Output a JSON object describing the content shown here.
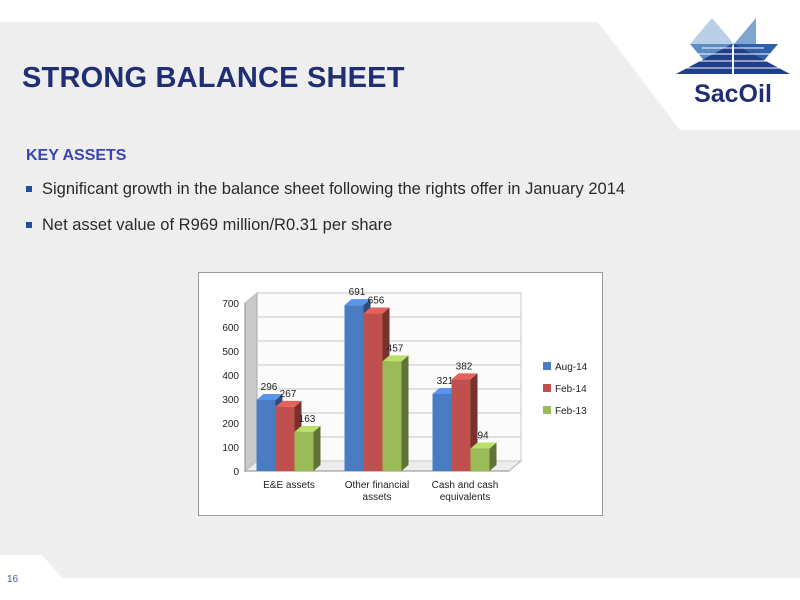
{
  "slide": {
    "title": "STRONG BALANCE SHEET",
    "brand": "SacOil",
    "section_heading": "KEY ASSETS",
    "bullets": [
      "Significant growth in the balance sheet following the rights offer in January 2014",
      "Net asset value of R969 million/R0.31 per share"
    ],
    "page_number": "16"
  },
  "colors": {
    "title": "#1f2f72",
    "heading": "#3a45b0",
    "background_band": "#eeeeee",
    "series": [
      "#4a7cc4",
      "#c0504d",
      "#9bbb59"
    ]
  },
  "chart_data": {
    "type": "bar",
    "variant": "3d-clustered",
    "categories": [
      "E&E assets",
      "Other financial assets",
      "Cash and cash equivalents"
    ],
    "category_lines": [
      [
        "E&E assets"
      ],
      [
        "Other financial",
        "assets"
      ],
      [
        "Cash and cash",
        "equivalents"
      ]
    ],
    "series": [
      {
        "name": "Aug-14",
        "values": [
          296,
          691,
          321
        ]
      },
      {
        "name": "Feb-14",
        "values": [
          267,
          656,
          382
        ]
      },
      {
        "name": "Feb-13",
        "values": [
          163,
          457,
          94
        ]
      }
    ],
    "ylim": [
      0,
      700
    ],
    "yticks": [
      0,
      100,
      200,
      300,
      400,
      500,
      600,
      700
    ],
    "grid": true,
    "legend_position": "right",
    "data_labels": true
  }
}
